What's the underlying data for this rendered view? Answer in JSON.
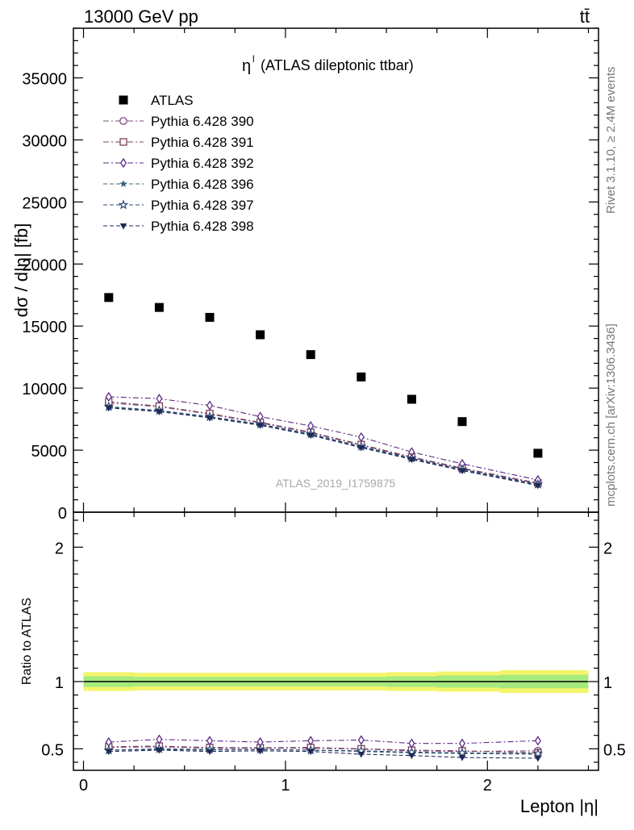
{
  "header": {
    "left": "13000 GeV pp",
    "right": "tt̄"
  },
  "side_labels": {
    "rivet": "Rivet 3.1.10, ≥ 2.4M events",
    "mcplots": "mcplots.cern.ch [arXiv:1306.3436]"
  },
  "chart_data": [
    {
      "type": "scatter",
      "panel": "main",
      "title_symbol": "η",
      "title_superscript": "l",
      "title_text": "(ATLAS dileptonic ttbar)",
      "ylabel": "dσ / d|η| [fb]",
      "watermark": "ATLAS_2019_I1759875",
      "xlim": [
        -0.05,
        2.55
      ],
      "ylim": [
        0,
        39000
      ],
      "yticks": [
        0,
        5000,
        10000,
        15000,
        20000,
        25000,
        30000,
        35000
      ],
      "ytick_labels": [
        "0",
        "5000",
        "10000",
        "15000",
        "20000",
        "25000",
        "30000",
        "35000"
      ],
      "legend_position": "top-left",
      "x": [
        0.125,
        0.375,
        0.625,
        0.875,
        1.125,
        1.375,
        1.625,
        1.875,
        2.25
      ],
      "series": [
        {
          "name": "ATLAS",
          "marker": "filled-square",
          "color": "#000000",
          "line": "none",
          "values": [
            17300,
            16500,
            15700,
            14300,
            12700,
            10900,
            9100,
            7300,
            4750
          ]
        },
        {
          "name": "Pythia 6.428 390",
          "marker": "open-circle",
          "color": "#7a4a7e",
          "line": "dashdot",
          "values": [
            8800,
            8500,
            7900,
            7200,
            6400,
            5400,
            4400,
            3500,
            2300
          ]
        },
        {
          "name": "Pythia 6.428 391",
          "marker": "open-square",
          "color": "#7a4057",
          "line": "dashdot",
          "values": [
            8900,
            8550,
            7950,
            7250,
            6450,
            5450,
            4450,
            3550,
            2350
          ]
        },
        {
          "name": "Pythia 6.428 392",
          "marker": "open-diamond",
          "color": "#5b2a86",
          "line": "dashdot",
          "values": [
            9300,
            9150,
            8600,
            7700,
            6950,
            6050,
            4850,
            3900,
            2600
          ]
        },
        {
          "name": "Pythia 6.428 396",
          "marker": "filled-star",
          "color": "#3a6478",
          "line": "dashed",
          "values": [
            8450,
            8150,
            7650,
            7050,
            6250,
            5250,
            4300,
            3400,
            2200
          ]
        },
        {
          "name": "Pythia 6.428 397",
          "marker": "open-star",
          "color": "#2e4a72",
          "line": "dashed",
          "values": [
            8500,
            8200,
            7700,
            7100,
            6300,
            5300,
            4350,
            3450,
            2250
          ]
        },
        {
          "name": "Pythia 6.428 398",
          "marker": "filled-triangle-down",
          "color": "#1e2a5a",
          "line": "dashed",
          "values": [
            8400,
            8100,
            7600,
            7000,
            6200,
            5200,
            4250,
            3350,
            2150
          ]
        }
      ]
    },
    {
      "type": "scatter",
      "panel": "ratio",
      "ylabel": "Ratio to ATLAS",
      "xlabel": "Lepton |η|",
      "xlim": [
        -0.05,
        2.55
      ],
      "ylim": [
        0.34,
        2.26
      ],
      "xticks": [
        0,
        1,
        2
      ],
      "xtick_labels": [
        "0",
        "1",
        "2"
      ],
      "yticks": [
        0.5,
        1,
        2
      ],
      "ytick_labels": [
        "0.5",
        "1",
        "2"
      ],
      "reference_line": 1.0,
      "band_outer": {
        "color": "#f4f46a",
        "values": [
          0.07,
          0.065,
          0.065,
          0.065,
          0.065,
          0.065,
          0.07,
          0.075,
          0.085
        ]
      },
      "band_inner": {
        "color": "#a6ea7e",
        "values": [
          0.04,
          0.035,
          0.035,
          0.035,
          0.035,
          0.035,
          0.04,
          0.045,
          0.05
        ]
      },
      "x": [
        0.125,
        0.375,
        0.625,
        0.875,
        1.125,
        1.375,
        1.625,
        1.875,
        2.25
      ],
      "series": [
        {
          "name": "Pythia 6.428 390",
          "marker": "open-circle",
          "color": "#7a4a7e",
          "line": "dashdot",
          "values": [
            0.51,
            0.515,
            0.505,
            0.505,
            0.505,
            0.498,
            0.485,
            0.48,
            0.485
          ]
        },
        {
          "name": "Pythia 6.428 391",
          "marker": "open-square",
          "color": "#7a4057",
          "line": "dashdot",
          "values": [
            0.515,
            0.52,
            0.51,
            0.508,
            0.51,
            0.5,
            0.49,
            0.485,
            0.47
          ]
        },
        {
          "name": "Pythia 6.428 392",
          "marker": "open-diamond",
          "color": "#5b2a86",
          "line": "dashdot",
          "values": [
            0.55,
            0.57,
            0.56,
            0.55,
            0.56,
            0.565,
            0.54,
            0.54,
            0.56
          ]
        },
        {
          "name": "Pythia 6.428 396",
          "marker": "filled-star",
          "color": "#3a6478",
          "line": "dashed",
          "values": [
            0.49,
            0.495,
            0.49,
            0.495,
            0.49,
            0.48,
            0.47,
            0.465,
            0.46
          ]
        },
        {
          "name": "Pythia 6.428 397",
          "marker": "open-star",
          "color": "#2e4a72",
          "line": "dashed",
          "values": [
            0.49,
            0.5,
            0.495,
            0.495,
            0.49,
            0.485,
            0.475,
            0.47,
            0.465
          ]
        },
        {
          "name": "Pythia 6.428 398",
          "marker": "filled-triangle-down",
          "color": "#1e2a5a",
          "line": "dashed",
          "values": [
            0.48,
            0.49,
            0.48,
            0.485,
            0.48,
            0.46,
            0.45,
            0.435,
            0.43
          ]
        }
      ]
    }
  ]
}
